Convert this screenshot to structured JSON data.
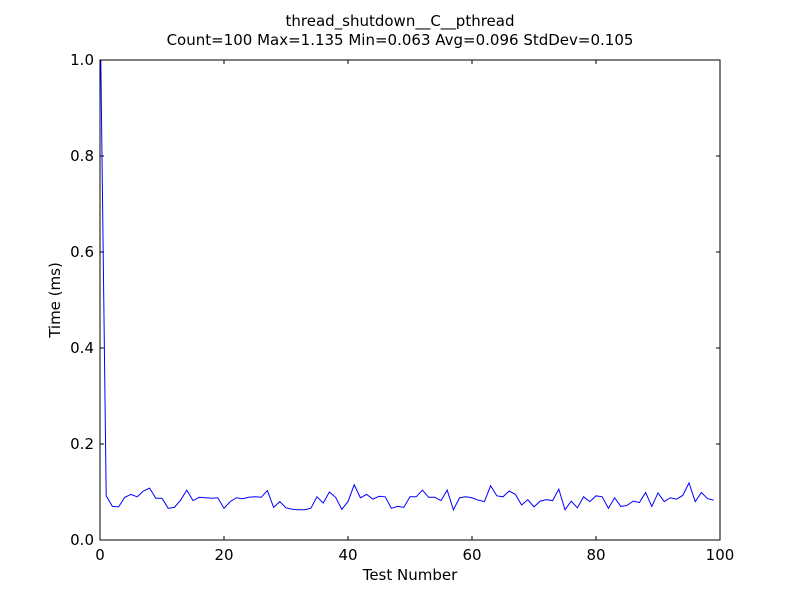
{
  "chart_data": {
    "type": "line",
    "title": "thread_shutdown__C__pthread",
    "subtitle": "Count=100 Max=1.135 Min=0.063 Avg=0.096 StdDev=0.105",
    "xlabel": "Test Number",
    "ylabel": "Time (ms)",
    "xlim": [
      0,
      100
    ],
    "ylim": [
      0.0,
      1.0
    ],
    "xticks": [
      0,
      20,
      40,
      60,
      80,
      100
    ],
    "xtick_labels": [
      "0",
      "20",
      "40",
      "60",
      "80",
      "100"
    ],
    "yticks": [
      0.0,
      0.2,
      0.4,
      0.6,
      0.8,
      1.0
    ],
    "ytick_labels": [
      "0.0",
      "0.2",
      "0.4",
      "0.6",
      "0.8",
      "1.0"
    ],
    "grid": false,
    "series": [
      {
        "color": "#0000ff",
        "x": [
          0,
          1,
          2,
          3,
          4,
          5,
          6,
          7,
          8,
          9,
          10,
          11,
          12,
          13,
          14,
          15,
          16,
          17,
          18,
          19,
          20,
          21,
          22,
          23,
          24,
          25,
          26,
          27,
          28,
          29,
          30,
          31,
          32,
          33,
          34,
          35,
          36,
          37,
          38,
          39,
          40,
          41,
          42,
          43,
          44,
          45,
          46,
          47,
          48,
          49,
          50,
          51,
          52,
          53,
          54,
          55,
          56,
          57,
          58,
          59,
          60,
          61,
          62,
          63,
          64,
          65,
          66,
          67,
          68,
          69,
          70,
          71,
          72,
          73,
          74,
          75,
          76,
          77,
          78,
          79,
          80,
          81,
          82,
          83,
          84,
          85,
          86,
          87,
          88,
          89,
          90,
          91,
          92,
          93,
          94,
          95,
          96,
          97,
          98,
          99
        ],
        "values": [
          1.135,
          0.092,
          0.07,
          0.069,
          0.089,
          0.095,
          0.09,
          0.102,
          0.108,
          0.087,
          0.087,
          0.066,
          0.068,
          0.083,
          0.104,
          0.082,
          0.089,
          0.088,
          0.087,
          0.088,
          0.066,
          0.08,
          0.088,
          0.086,
          0.089,
          0.09,
          0.089,
          0.103,
          0.068,
          0.08,
          0.067,
          0.064,
          0.063,
          0.063,
          0.066,
          0.09,
          0.077,
          0.1,
          0.089,
          0.064,
          0.08,
          0.115,
          0.088,
          0.095,
          0.085,
          0.091,
          0.09,
          0.066,
          0.07,
          0.068,
          0.09,
          0.09,
          0.104,
          0.089,
          0.089,
          0.082,
          0.104,
          0.063,
          0.088,
          0.09,
          0.088,
          0.083,
          0.08,
          0.113,
          0.092,
          0.09,
          0.102,
          0.095,
          0.073,
          0.084,
          0.069,
          0.081,
          0.084,
          0.082,
          0.106,
          0.063,
          0.081,
          0.067,
          0.09,
          0.08,
          0.092,
          0.09,
          0.066,
          0.088,
          0.07,
          0.072,
          0.081,
          0.078,
          0.099,
          0.07,
          0.098,
          0.08,
          0.088,
          0.085,
          0.093,
          0.119,
          0.08,
          0.099,
          0.086,
          0.083
        ]
      }
    ]
  }
}
